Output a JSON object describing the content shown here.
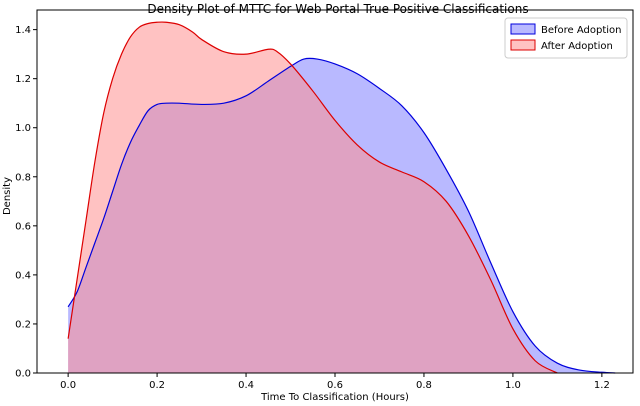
{
  "chart_data": {
    "type": "area",
    "title": "Density Plot of MTTC for Web Portal True Positive Classifications",
    "xlabel": "Time To Classification (Hours)",
    "ylabel": "Density",
    "xlim": [
      -0.07,
      1.27
    ],
    "ylim": [
      0,
      1.48
    ],
    "xticks": [
      "0.0",
      "0.2",
      "0.4",
      "0.6",
      "0.8",
      "1.0",
      "1.2"
    ],
    "yticks": [
      "0.0",
      "0.2",
      "0.4",
      "0.6",
      "0.8",
      "1.0",
      "1.2",
      "1.4"
    ],
    "grid": false,
    "legend_position": "top-right",
    "series": [
      {
        "name": "Before Adoption",
        "line_color": "#0000dd",
        "fill_color": "#8080ff",
        "x": [
          0.0,
          0.02,
          0.04,
          0.06,
          0.08,
          0.1,
          0.12,
          0.14,
          0.16,
          0.18,
          0.2,
          0.22,
          0.25,
          0.3,
          0.35,
          0.4,
          0.45,
          0.5,
          0.53,
          0.56,
          0.6,
          0.65,
          0.7,
          0.75,
          0.8,
          0.85,
          0.9,
          0.95,
          1.0,
          1.05,
          1.1,
          1.15,
          1.2,
          1.23
        ],
        "y": [
          0.27,
          0.33,
          0.43,
          0.53,
          0.63,
          0.74,
          0.85,
          0.94,
          1.01,
          1.07,
          1.095,
          1.1,
          1.1,
          1.095,
          1.1,
          1.13,
          1.19,
          1.25,
          1.28,
          1.28,
          1.26,
          1.22,
          1.16,
          1.09,
          0.98,
          0.83,
          0.66,
          0.45,
          0.25,
          0.11,
          0.04,
          0.012,
          0.003,
          0.0
        ]
      },
      {
        "name": "After Adoption",
        "line_color": "#dd0000",
        "fill_color": "#ff9090",
        "x": [
          0.0,
          0.02,
          0.04,
          0.06,
          0.08,
          0.1,
          0.12,
          0.14,
          0.16,
          0.18,
          0.2,
          0.22,
          0.25,
          0.28,
          0.3,
          0.35,
          0.4,
          0.45,
          0.47,
          0.5,
          0.55,
          0.6,
          0.65,
          0.7,
          0.75,
          0.8,
          0.85,
          0.9,
          0.95,
          1.0,
          1.05,
          1.1
        ],
        "y": [
          0.14,
          0.38,
          0.62,
          0.86,
          1.06,
          1.2,
          1.3,
          1.37,
          1.41,
          1.425,
          1.43,
          1.43,
          1.42,
          1.39,
          1.36,
          1.31,
          1.3,
          1.32,
          1.31,
          1.26,
          1.15,
          1.03,
          0.93,
          0.86,
          0.82,
          0.78,
          0.7,
          0.56,
          0.38,
          0.18,
          0.05,
          0.0
        ]
      }
    ]
  }
}
